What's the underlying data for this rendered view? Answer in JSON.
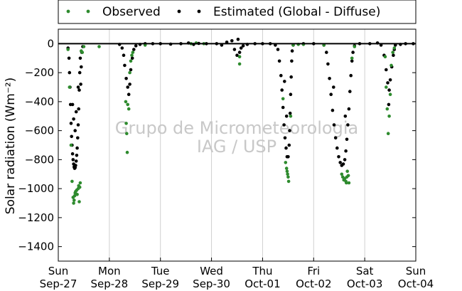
{
  "chart_data": {
    "type": "scatter",
    "ylabel": "Solar radiation (Wm⁻²)",
    "ylim": [
      -1500,
      100
    ],
    "yticks": [
      0,
      -200,
      -400,
      -600,
      -800,
      -1000,
      -1200,
      -1400
    ],
    "xlim": [
      0,
      7
    ],
    "xticks": [
      {
        "x": 0,
        "day": "Sun",
        "date": "Sep-27"
      },
      {
        "x": 1,
        "day": "Mon",
        "date": "Sep-28"
      },
      {
        "x": 2,
        "day": "Tue",
        "date": "Sep-29"
      },
      {
        "x": 3,
        "day": "Wed",
        "date": "Sep-30"
      },
      {
        "x": 4,
        "day": "Thu",
        "date": "Oct-01"
      },
      {
        "x": 5,
        "day": "Fri",
        "date": "Oct-02"
      },
      {
        "x": 6,
        "day": "Sat",
        "date": "Oct-03"
      },
      {
        "x": 7,
        "day": "Sun",
        "date": "Oct-04"
      }
    ],
    "grid": {
      "x": true,
      "y": false
    },
    "legend_position": "top-center",
    "watermark": [
      "Grupo de Micrometeorologia",
      "IAG / USP"
    ],
    "series": [
      {
        "name": "Observed",
        "color": "#2e8b2e",
        "points": [
          [
            0.19,
            -40
          ],
          [
            0.22,
            -300
          ],
          [
            0.25,
            -700
          ],
          [
            0.27,
            -950
          ],
          [
            0.29,
            -1060
          ],
          [
            0.3,
            -1100
          ],
          [
            0.31,
            -1080
          ],
          [
            0.32,
            -1050
          ],
          [
            0.33,
            -1030
          ],
          [
            0.34,
            -1020
          ],
          [
            0.36,
            -1010
          ],
          [
            0.37,
            -1040
          ],
          [
            0.39,
            -1000
          ],
          [
            0.4,
            -980
          ],
          [
            0.41,
            -1090
          ],
          [
            0.42,
            -990
          ],
          [
            0.43,
            -960
          ],
          [
            0.45,
            -50
          ],
          [
            0.47,
            -60
          ],
          [
            0.5,
            -20
          ],
          [
            0.8,
            -20
          ],
          [
            1.32,
            -400
          ],
          [
            1.33,
            -550
          ],
          [
            1.34,
            -620
          ],
          [
            1.35,
            -750
          ],
          [
            1.36,
            -420
          ],
          [
            1.38,
            -450
          ],
          [
            1.4,
            -200
          ],
          [
            1.42,
            -120
          ],
          [
            1.44,
            -80
          ],
          [
            1.46,
            -60
          ],
          [
            1.7,
            -10
          ],
          [
            2.6,
            0
          ],
          [
            2.7,
            5
          ],
          [
            2.85,
            0
          ],
          [
            3.55,
            -140
          ],
          [
            3.55,
            -90
          ],
          [
            4.4,
            -380
          ],
          [
            4.45,
            -820
          ],
          [
            4.47,
            -860
          ],
          [
            4.48,
            -880
          ],
          [
            4.49,
            -900
          ],
          [
            4.5,
            -920
          ],
          [
            4.51,
            -950
          ],
          [
            4.55,
            -500
          ],
          [
            4.6,
            -10
          ],
          [
            4.7,
            -5
          ],
          [
            4.8,
            -5
          ],
          [
            5.2,
            -10
          ],
          [
            5.55,
            -900
          ],
          [
            5.57,
            -920
          ],
          [
            5.59,
            -940
          ],
          [
            5.61,
            -930
          ],
          [
            5.63,
            -950
          ],
          [
            5.64,
            -960
          ],
          [
            5.65,
            -920
          ],
          [
            5.66,
            -880
          ],
          [
            5.68,
            -910
          ],
          [
            5.69,
            -960
          ],
          [
            5.75,
            -100
          ],
          [
            5.8,
            -20
          ],
          [
            6.4,
            -90
          ],
          [
            6.42,
            -300
          ],
          [
            6.44,
            -450
          ],
          [
            6.46,
            -620
          ],
          [
            6.48,
            -500
          ],
          [
            6.5,
            -350
          ],
          [
            6.52,
            -150
          ],
          [
            6.55,
            -60
          ],
          [
            6.58,
            -30
          ]
        ]
      },
      {
        "name": "Estimated (Global - Diffuse)",
        "color": "#000000",
        "points": [
          [
            0.19,
            -30
          ],
          [
            0.21,
            -100
          ],
          [
            0.22,
            -200
          ],
          [
            0.23,
            -300
          ],
          [
            0.24,
            -420
          ],
          [
            0.25,
            -550
          ],
          [
            0.26,
            -640
          ],
          [
            0.27,
            -700
          ],
          [
            0.28,
            -760
          ],
          [
            0.29,
            -800
          ],
          [
            0.3,
            -830
          ],
          [
            0.31,
            -850
          ],
          [
            0.32,
            -860
          ],
          [
            0.33,
            -855
          ],
          [
            0.34,
            -840
          ],
          [
            0.35,
            -810
          ],
          [
            0.36,
            -770
          ],
          [
            0.37,
            -720
          ],
          [
            0.38,
            -650
          ],
          [
            0.39,
            -560
          ],
          [
            0.4,
            -450
          ],
          [
            0.41,
            -320
          ],
          [
            0.42,
            -200
          ],
          [
            0.43,
            -100
          ],
          [
            0.44,
            -280
          ],
          [
            0.45,
            -160
          ],
          [
            0.46,
            -60
          ],
          [
            0.48,
            -20
          ],
          [
            0.3,
            -520
          ],
          [
            0.35,
            -470
          ],
          [
            0.39,
            -300
          ],
          [
            0.28,
            -420
          ],
          [
            0.33,
            -600
          ],
          [
            1.2,
            -5
          ],
          [
            1.25,
            -30
          ],
          [
            1.28,
            -80
          ],
          [
            1.3,
            -150
          ],
          [
            1.33,
            -240
          ],
          [
            1.36,
            -300
          ],
          [
            1.38,
            -350
          ],
          [
            1.4,
            -280
          ],
          [
            1.42,
            -180
          ],
          [
            1.45,
            -100
          ],
          [
            1.48,
            -40
          ],
          [
            1.52,
            -15
          ],
          [
            1.6,
            -5
          ],
          [
            1.7,
            0
          ],
          [
            1.85,
            0
          ],
          [
            2.0,
            0
          ],
          [
            2.2,
            -3
          ],
          [
            2.4,
            0
          ],
          [
            2.55,
            5
          ],
          [
            2.65,
            -5
          ],
          [
            2.75,
            2
          ],
          [
            2.9,
            0
          ],
          [
            3.1,
            0
          ],
          [
            3.2,
            -10
          ],
          [
            3.3,
            10
          ],
          [
            3.4,
            20
          ],
          [
            3.45,
            -40
          ],
          [
            3.5,
            -80
          ],
          [
            3.52,
            30
          ],
          [
            3.55,
            -60
          ],
          [
            3.58,
            -30
          ],
          [
            3.62,
            -15
          ],
          [
            3.7,
            -5
          ],
          [
            3.85,
            0
          ],
          [
            4.0,
            0
          ],
          [
            4.15,
            0
          ],
          [
            4.25,
            -10
          ],
          [
            4.3,
            -40
          ],
          [
            4.33,
            -120
          ],
          [
            4.36,
            -220
          ],
          [
            4.38,
            -320
          ],
          [
            4.4,
            -440
          ],
          [
            4.42,
            -560
          ],
          [
            4.44,
            -650
          ],
          [
            4.46,
            -720
          ],
          [
            4.48,
            -780
          ],
          [
            4.5,
            -780
          ],
          [
            4.52,
            -700
          ],
          [
            4.53,
            -600
          ],
          [
            4.54,
            -480
          ],
          [
            4.55,
            -350
          ],
          [
            4.56,
            -230
          ],
          [
            4.57,
            -120
          ],
          [
            4.58,
            -50
          ],
          [
            4.43,
            -260
          ],
          [
            4.47,
            -500
          ],
          [
            4.6,
            -10
          ],
          [
            4.8,
            0
          ],
          [
            5.0,
            0
          ],
          [
            5.2,
            -10
          ],
          [
            5.25,
            -60
          ],
          [
            5.28,
            -140
          ],
          [
            5.31,
            -240
          ],
          [
            5.34,
            -350
          ],
          [
            5.37,
            -460
          ],
          [
            5.4,
            -560
          ],
          [
            5.43,
            -650
          ],
          [
            5.46,
            -720
          ],
          [
            5.49,
            -780
          ],
          [
            5.52,
            -820
          ],
          [
            5.55,
            -840
          ],
          [
            5.58,
            -830
          ],
          [
            5.61,
            -800
          ],
          [
            5.63,
            -740
          ],
          [
            5.65,
            -660
          ],
          [
            5.67,
            -560
          ],
          [
            5.69,
            -450
          ],
          [
            5.71,
            -330
          ],
          [
            5.73,
            -220
          ],
          [
            5.75,
            -120
          ],
          [
            5.77,
            -60
          ],
          [
            5.39,
            -300
          ],
          [
            5.62,
            -500
          ],
          [
            5.8,
            -15
          ],
          [
            5.9,
            0
          ],
          [
            6.1,
            0
          ],
          [
            6.25,
            5
          ],
          [
            6.32,
            -10
          ],
          [
            6.38,
            -80
          ],
          [
            6.42,
            -180
          ],
          [
            6.45,
            -270
          ],
          [
            6.48,
            -320
          ],
          [
            6.5,
            -250
          ],
          [
            6.53,
            -160
          ],
          [
            6.56,
            -80
          ],
          [
            6.58,
            -40
          ],
          [
            6.47,
            -420
          ],
          [
            6.6,
            -10
          ],
          [
            6.7,
            -5
          ],
          [
            6.8,
            0
          ],
          [
            6.95,
            0
          ]
        ]
      }
    ]
  }
}
